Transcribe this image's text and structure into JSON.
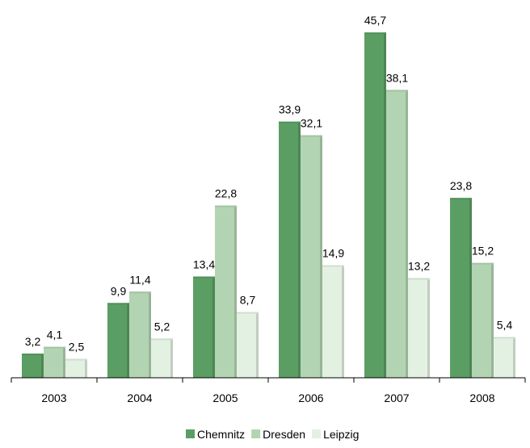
{
  "chart_data": {
    "type": "bar",
    "title": "",
    "xlabel": "",
    "ylabel": "",
    "categories": [
      "2003",
      "2004",
      "2005",
      "2006",
      "2007",
      "2008"
    ],
    "series": [
      {
        "name": "Chemnitz",
        "values": [
          3.2,
          9.9,
          13.4,
          33.9,
          45.7,
          23.8
        ],
        "labels": [
          "3,2",
          "9,9",
          "13,4",
          "33,9",
          "45,7",
          "23,8"
        ],
        "color": "#5b9e63"
      },
      {
        "name": "Dresden",
        "values": [
          4.1,
          11.4,
          22.8,
          32.1,
          38.1,
          15.2
        ],
        "labels": [
          "4,1",
          "11,4",
          "22,8",
          "32,1",
          "38,1",
          "15,2"
        ],
        "color": "#b3d4b2"
      },
      {
        "name": "Leipzig",
        "values": [
          2.5,
          5.2,
          8.7,
          14.9,
          13.2,
          5.4
        ],
        "labels": [
          "2,5",
          "5,2",
          "8,7",
          "14,9",
          "13,2",
          "5,4"
        ],
        "color": "#e3f1e2"
      }
    ],
    "ylim": [
      0,
      49
    ],
    "grid": false,
    "legend_position": "bottom"
  },
  "colors": {
    "axis": "#000000",
    "bar_edge_chemnitz": "#3f7f48",
    "bar_edge_dresden": "#8fbc8f",
    "bar_edge_leipzig": "#b9d8b8"
  }
}
